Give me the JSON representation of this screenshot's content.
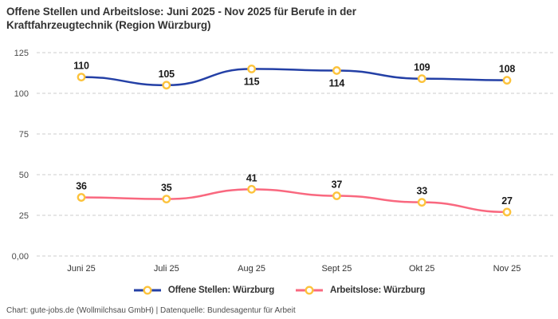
{
  "footer": {
    "credit": "Chart: gute-jobs.de (Wollmilchsau GmbH) | Datenquelle: Bundesagentur für Arbeit"
  },
  "chart_data": {
    "type": "line",
    "title": "Offene Stellen und Arbeitslose: Juni 2025 - Nov 2025 für Berufe in der Kraftfahrzeugtechnik (Region Würzburg)",
    "categories": [
      "Juni 25",
      "Juli 25",
      "Aug 25",
      "Sept 25",
      "Okt 25",
      "Nov 25"
    ],
    "series": [
      {
        "name": "Offene Stellen: Würzburg",
        "color": "#2440a6",
        "values": [
          110,
          105,
          115,
          114,
          109,
          108
        ],
        "label_positions": [
          "above",
          "above",
          "below",
          "below",
          "above",
          "above"
        ]
      },
      {
        "name": "Arbeitslose: Würzburg",
        "color": "#f9687f",
        "values": [
          36,
          35,
          41,
          37,
          33,
          27
        ],
        "label_positions": [
          "above",
          "above",
          "above",
          "above",
          "above",
          "above"
        ]
      }
    ],
    "marker": {
      "stroke": "#fcc33d",
      "fill": "#ffffff"
    },
    "grid": {
      "color": "#cccccc",
      "style": "dashed"
    },
    "ylim": [
      0,
      125
    ],
    "yticks": [
      {
        "value": 0,
        "label": "0,00"
      },
      {
        "value": 25,
        "label": "25"
      },
      {
        "value": 50,
        "label": "50"
      },
      {
        "value": 75,
        "label": "75"
      },
      {
        "value": 100,
        "label": "100"
      },
      {
        "value": 125,
        "label": "125"
      }
    ],
    "xlabel": "",
    "ylabel": "",
    "legend_position": "bottom",
    "line_style": "smooth"
  }
}
